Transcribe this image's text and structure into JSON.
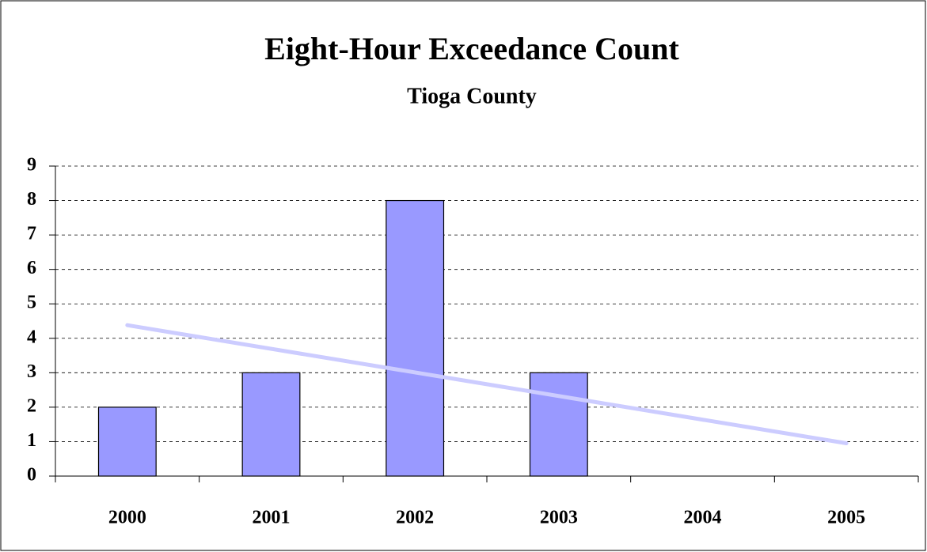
{
  "chart_data": {
    "type": "bar",
    "title": "Eight-Hour Exceedance Count",
    "subtitle": "Tioga County",
    "categories": [
      "2000",
      "2001",
      "2002",
      "2003",
      "2004",
      "2005"
    ],
    "values": [
      2,
      3,
      8,
      3,
      0,
      0
    ],
    "color": "#9999ff",
    "trendline": {
      "type": "linear",
      "color": "#ccccff"
    },
    "ylim": [
      0,
      9
    ],
    "yticks": [
      0,
      1,
      2,
      3,
      4,
      5,
      6,
      7,
      8,
      9
    ],
    "grid": true
  }
}
